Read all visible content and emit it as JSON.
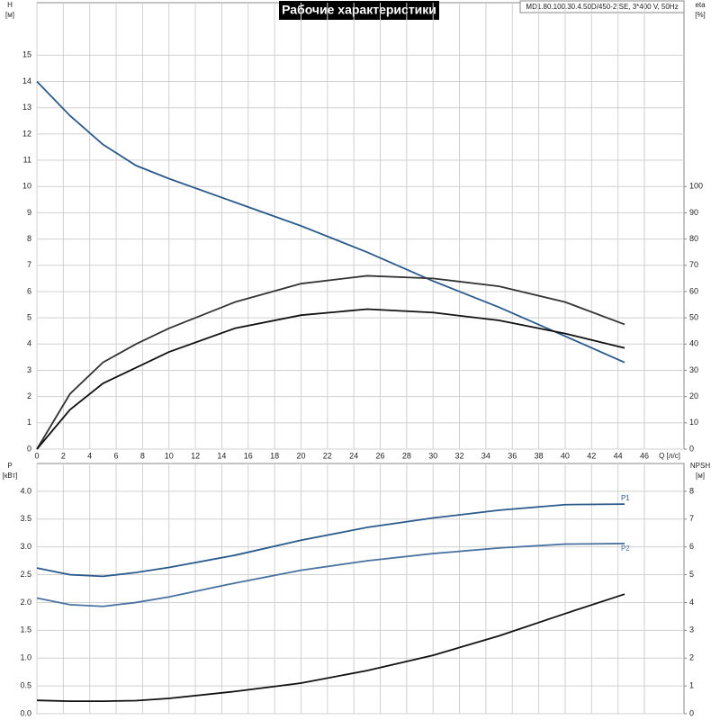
{
  "chart_data": [
    {
      "type": "line",
      "title": "Рабочие характеристики",
      "subtitle": "MD1.80.100.30.4.50D/450-2.SE, 3*400 V, 50Hz",
      "ylabel": [
        "H",
        "[м]"
      ],
      "y2label": [
        "eta",
        "[%]"
      ],
      "xlabel": "Q [л/с]",
      "x": [
        0,
        2.5,
        5,
        7.5,
        10,
        15,
        20,
        25,
        30,
        35,
        40,
        44.5
      ],
      "xlim": [
        0,
        49
      ],
      "xticks": [
        0,
        2,
        4,
        6,
        8,
        10,
        12,
        14,
        16,
        18,
        20,
        22,
        24,
        26,
        28,
        30,
        32,
        34,
        36,
        38,
        40,
        42,
        44,
        46
      ],
      "ylim": [
        0,
        17
      ],
      "yticks": [
        0,
        1,
        2,
        3,
        4,
        5,
        6,
        7,
        8,
        9,
        10,
        11,
        12,
        13,
        14,
        15
      ],
      "y2lim": [
        0,
        170
      ],
      "y2ticks": [
        0,
        10,
        20,
        30,
        40,
        50,
        60,
        70,
        80,
        90,
        100
      ],
      "grid": true,
      "series": [
        {
          "color": "#2a5a8c",
          "values": [
            14,
            12.7,
            11.6,
            10.8,
            10.3,
            9.4,
            8.5,
            7.5,
            6.4,
            5.4,
            4.3,
            3.3
          ]
        },
        {
          "color": "#333333",
          "axis": "y2",
          "values": [
            0,
            21,
            33,
            40,
            46,
            56,
            63,
            66,
            65,
            62,
            56,
            47.5
          ]
        },
        {
          "color": "#111111",
          "axis": "y2",
          "values": [
            0,
            15,
            25,
            31,
            37,
            46,
            51,
            53.3,
            52,
            49,
            44,
            38.5
          ]
        }
      ]
    },
    {
      "type": "line",
      "ylabel": [
        "P",
        "[кВт]"
      ],
      "y2label": [
        "NPSH",
        "[м]"
      ],
      "x": [
        0,
        2.5,
        5,
        7.5,
        10,
        15,
        20,
        25,
        30,
        35,
        40,
        44.5
      ],
      "xlim": [
        0,
        49
      ],
      "xticks": [
        0,
        2,
        4,
        6,
        8,
        10,
        12,
        14,
        16,
        18,
        20,
        22,
        24,
        26,
        28,
        30,
        32,
        34,
        36,
        38,
        40,
        42,
        44,
        46
      ],
      "ylim": [
        0,
        4.5
      ],
      "yticks": [
        {
          "value": 0,
          "label": "0.0"
        },
        0.5,
        {
          "value": 1,
          "label": "1.0"
        },
        1.5,
        {
          "value": 2,
          "label": "2.0"
        },
        2.5,
        {
          "value": 3,
          "label": "3.0"
        },
        3.5,
        {
          "value": 4,
          "label": "4.0"
        }
      ],
      "y2lim": [
        0,
        9
      ],
      "y2ticks": [
        0,
        1,
        2,
        3,
        4,
        5,
        6,
        7,
        8
      ],
      "grid": true,
      "series": [
        {
          "name": "P1",
          "color": "#2a5a8c",
          "values": [
            2.62,
            2.5,
            2.47,
            2.54,
            2.63,
            2.85,
            3.12,
            3.35,
            3.52,
            3.66,
            3.76,
            3.77
          ]
        },
        {
          "name": "P2",
          "color": "#4a72a0",
          "values": [
            2.08,
            1.96,
            1.93,
            2.0,
            2.1,
            2.35,
            2.58,
            2.75,
            2.88,
            2.98,
            3.05,
            3.06
          ]
        },
        {
          "color": "#111111",
          "axis": "y2",
          "values": [
            0.48,
            0.45,
            0.45,
            0.47,
            0.55,
            0.8,
            1.1,
            1.55,
            2.1,
            2.8,
            3.6,
            4.3
          ]
        }
      ]
    }
  ]
}
